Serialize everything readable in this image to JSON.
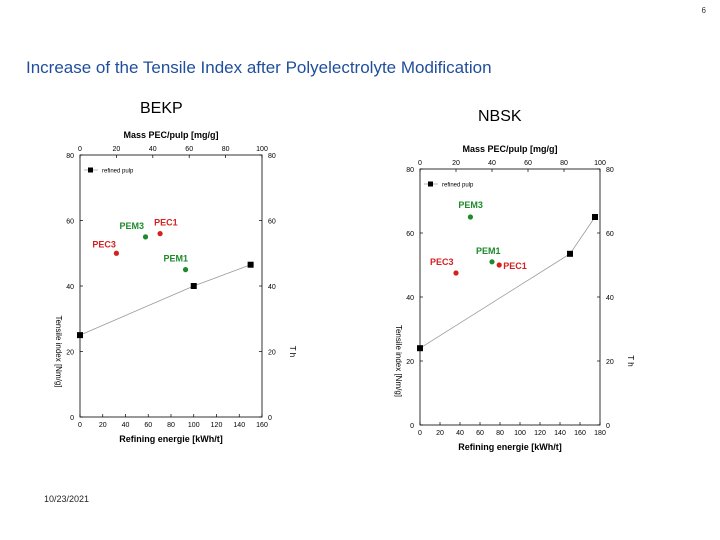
{
  "slide": {
    "page_number": "6",
    "title": "Increase of the Tensile Index after Polyelectrolyte Modification",
    "date": "10/23/2021"
  },
  "colors": {
    "title": "#1f4e9c",
    "pec": "#d42020",
    "pem": "#1e8a2a",
    "refined": "#000000",
    "refined_line": "#999999"
  },
  "chart_data": [
    {
      "type": "scatter",
      "title": "BEKP",
      "xlabel": "Refining energie [kWh/t]",
      "x2label": "Mass PEC/pulp [mg/g]",
      "ylabel_left": "Tensile index [Nm/g]",
      "ylabel_right": "T h",
      "xlim": [
        0,
        160
      ],
      "x_ticks": [
        0,
        20,
        40,
        60,
        80,
        100,
        120,
        140,
        160
      ],
      "x2lim": [
        0,
        100
      ],
      "x2_ticks": [
        0,
        20,
        40,
        60,
        80,
        100
      ],
      "ylim": [
        0,
        80
      ],
      "y_ticks": [
        0,
        20,
        40,
        60,
        80
      ],
      "legend": {
        "label": "refined pulp",
        "position": "top-left"
      },
      "series": [
        {
          "name": "refined pulp",
          "axis": "bottom",
          "marker": "square",
          "points": [
            [
              0,
              25
            ],
            [
              100,
              40
            ],
            [
              150,
              46.5
            ]
          ]
        },
        {
          "name": "PEC3",
          "axis": "top",
          "marker": "circle",
          "points": [
            [
              20,
              50
            ]
          ]
        },
        {
          "name": "PEM3",
          "axis": "top",
          "marker": "circle",
          "points": [
            [
              36,
              55
            ]
          ]
        },
        {
          "name": "PEC1",
          "axis": "top",
          "marker": "circle",
          "points": [
            [
              44,
              56
            ]
          ]
        },
        {
          "name": "PEM1",
          "axis": "top",
          "marker": "circle",
          "points": [
            [
              58,
              45
            ]
          ]
        }
      ]
    },
    {
      "type": "scatter",
      "title": "NBSK",
      "xlabel": "Refining energie [kWh/t]",
      "x2label": "Mass PEC/pulp [mg/g]",
      "ylabel_left": "Tensile index [Nm/g]",
      "ylabel_right": "T h",
      "xlim": [
        0,
        180
      ],
      "x_ticks": [
        0,
        20,
        40,
        60,
        80,
        100,
        120,
        140,
        160,
        180
      ],
      "x2lim": [
        0,
        100
      ],
      "x2_ticks": [
        0,
        20,
        40,
        60,
        80,
        100
      ],
      "ylim": [
        0,
        80
      ],
      "y_ticks": [
        0,
        20,
        40,
        60,
        80
      ],
      "legend": {
        "label": "refined pulp",
        "position": "top-left"
      },
      "series": [
        {
          "name": "refined pulp",
          "axis": "bottom",
          "marker": "square",
          "points": [
            [
              0,
              24
            ],
            [
              150,
              53.5
            ],
            [
              175,
              65
            ]
          ]
        },
        {
          "name": "PEC3",
          "axis": "top",
          "marker": "circle",
          "points": [
            [
              20,
              47.5
            ]
          ]
        },
        {
          "name": "PEM3",
          "axis": "top",
          "marker": "circle",
          "points": [
            [
              28,
              65
            ]
          ]
        },
        {
          "name": "PEM1",
          "axis": "top",
          "marker": "circle",
          "points": [
            [
              40,
              51
            ]
          ]
        },
        {
          "name": "PEC1",
          "axis": "top",
          "marker": "circle",
          "points": [
            [
              44,
              50
            ]
          ]
        }
      ]
    }
  ]
}
